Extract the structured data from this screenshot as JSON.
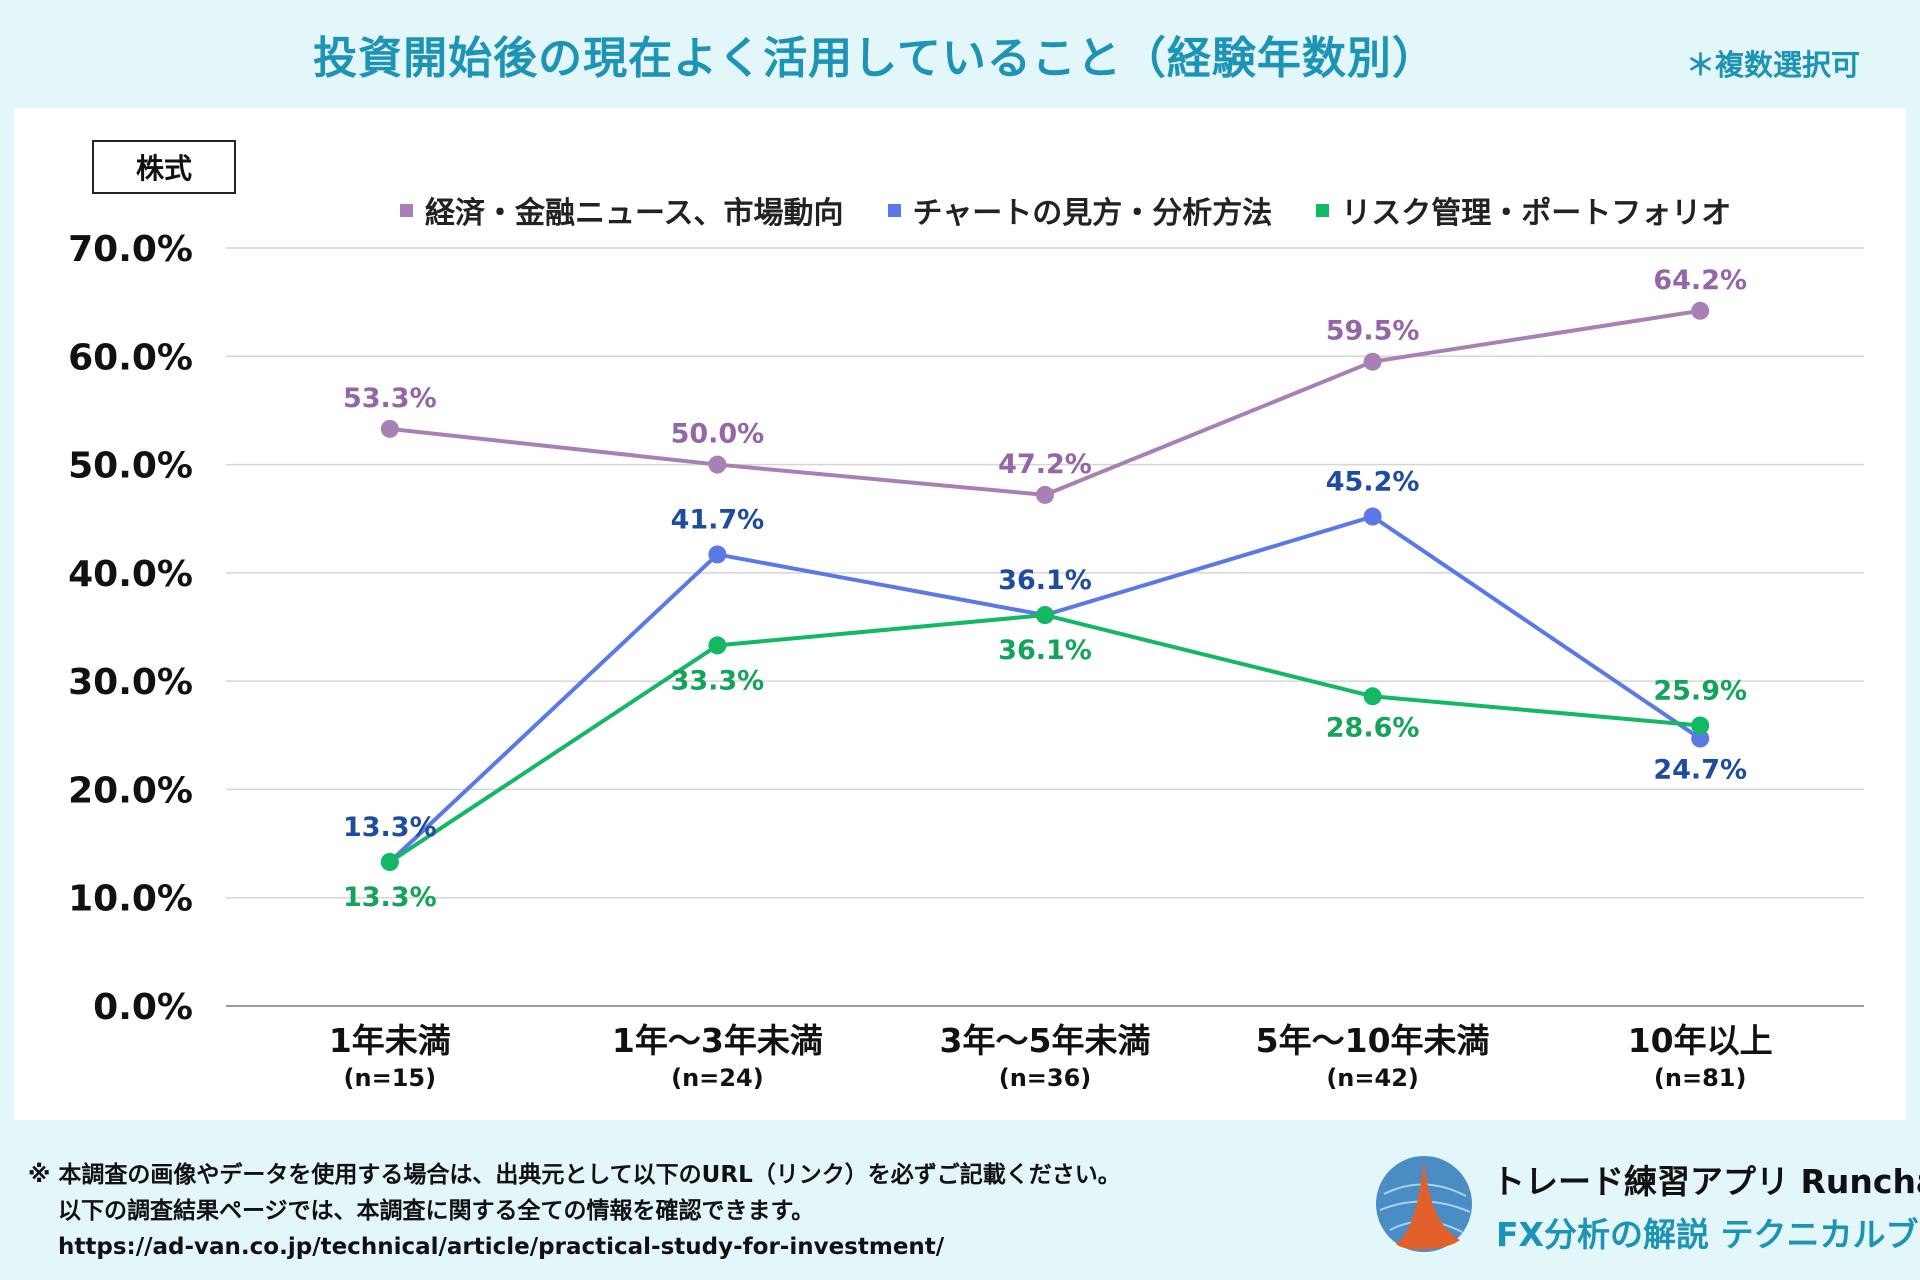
{
  "header": {
    "title": "投資開始後の現在よく活用していること（経験年数別）",
    "note": "＊複数選択可"
  },
  "category_label": "株式",
  "legend": [
    {
      "label": "経済・金融ニュース、市場動向",
      "color": "#a880b4"
    },
    {
      "label": "チャートの見方・分析方法",
      "color": "#5a78e6"
    },
    {
      "label": "リスク管理・ポートフォリオ",
      "color": "#12b864"
    }
  ],
  "chart_data": {
    "type": "line",
    "title": "投資開始後の現在よく活用していること（経験年数別）",
    "categories": [
      "1年未満",
      "1年～3年未満",
      "3年～5年未満",
      "5年～10年未満",
      "10年以上"
    ],
    "sample_sizes": [
      "(n=15)",
      "(n=24)",
      "(n=36)",
      "(n=42)",
      "(n=81)"
    ],
    "ylim": [
      0,
      70
    ],
    "yticks": [
      0,
      10,
      20,
      30,
      40,
      50,
      60,
      70
    ],
    "ytick_labels": [
      "0.0%",
      "10.0%",
      "20.0%",
      "30.0%",
      "40.0%",
      "50.0%",
      "60.0%",
      "70.0%"
    ],
    "grid": true,
    "legend_position": "top",
    "series": [
      {
        "name": "経済・金融ニュース、市場動向",
        "color": "#a880b4",
        "label_color": "#9466a8",
        "values": [
          53.3,
          50.0,
          47.2,
          59.5,
          64.2
        ],
        "labels": [
          "53.3%",
          "50.0%",
          "47.2%",
          "59.5%",
          "64.2%"
        ]
      },
      {
        "name": "チャートの見方・分析方法",
        "color": "#5a78e6",
        "label_color": "#1d4ca0",
        "values": [
          13.3,
          41.7,
          36.1,
          45.2,
          24.7
        ],
        "labels": [
          "13.3%",
          "41.7%",
          "36.1%",
          "45.2%",
          "24.7%"
        ]
      },
      {
        "name": "リスク管理・ポートフォリオ",
        "color": "#12b864",
        "label_color": "#13a35a",
        "values": [
          13.3,
          33.3,
          36.1,
          28.6,
          25.9
        ],
        "labels": [
          "13.3%",
          "33.3%",
          "36.1%",
          "28.6%",
          "25.9%"
        ]
      }
    ]
  },
  "footer": {
    "line1": "※ 本調査の画像やデータを使用する場合は、出典元として以下のURL（リンク）を必ずご記載ください。",
    "line2": "以下の調査結果ページでは、本調査に関する全ての情報を確認できます。",
    "url": "https://ad-van.co.jp/technical/article/practical-study-for-investment/"
  },
  "brand": {
    "app_name": "トレード練習アプリ Runcha",
    "book_name": "FX分析の解説 テクニカルブック"
  }
}
